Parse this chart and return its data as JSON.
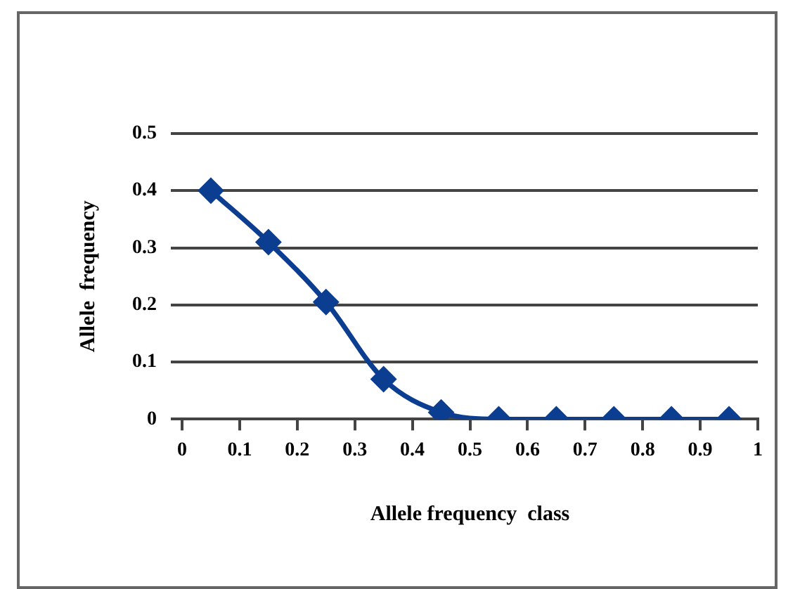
{
  "chart_data": {
    "type": "line",
    "xlabel": "Allele frequency  class",
    "ylabel": "Allele  frequency",
    "x": [
      0.05,
      0.15,
      0.25,
      0.35,
      0.45,
      0.55,
      0.65,
      0.75,
      0.85,
      0.95
    ],
    "series": [
      {
        "color": "#0b3d91",
        "values": [
          0.4,
          0.31,
          0.205,
          0.07,
          0.012,
          0,
          0,
          0,
          0,
          0
        ]
      }
    ],
    "xlim": [
      0,
      1
    ],
    "xticks": [
      0,
      0.1,
      0.2,
      0.3,
      0.4,
      0.5,
      0.6,
      0.7,
      0.8,
      0.9,
      1
    ],
    "ylim": [
      0,
      0.5
    ],
    "yticks": [
      0,
      0.1,
      0.2,
      0.3,
      0.4,
      0.5
    ],
    "grid": "y",
    "legend": false,
    "marker": "diamond",
    "line_style": "solid"
  }
}
